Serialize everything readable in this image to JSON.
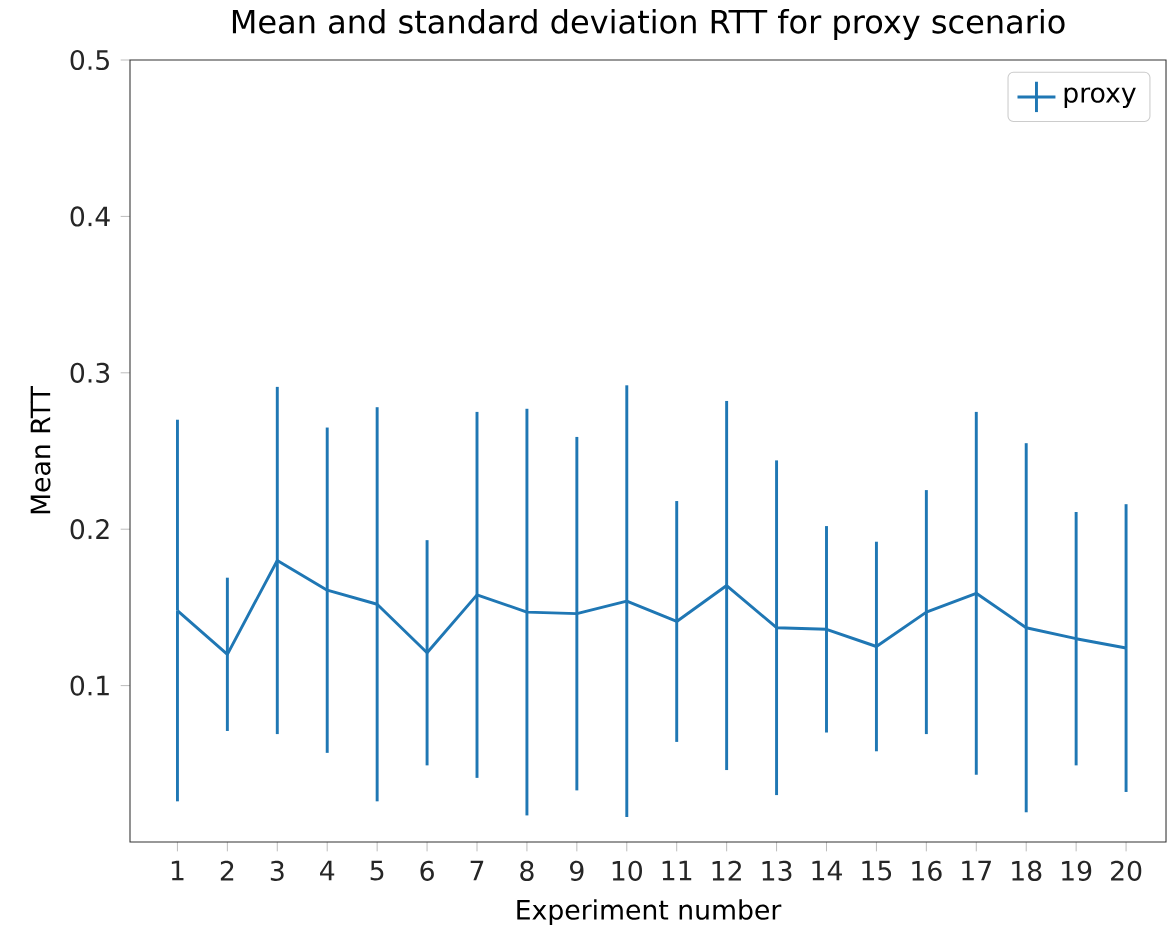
{
  "chart_data": {
    "type": "line",
    "title": "Mean and standard deviation RTT for proxy scenario",
    "xlabel": "Experiment number",
    "ylabel": "Mean RTT",
    "x": [
      1,
      2,
      3,
      4,
      5,
      6,
      7,
      8,
      9,
      10,
      11,
      12,
      13,
      14,
      15,
      16,
      17,
      18,
      19,
      20
    ],
    "series": [
      {
        "name": "proxy",
        "color": "#1f77b4",
        "values": [
          0.148,
          0.12,
          0.18,
          0.161,
          0.152,
          0.121,
          0.158,
          0.147,
          0.146,
          0.154,
          0.141,
          0.164,
          0.137,
          0.136,
          0.125,
          0.147,
          0.159,
          0.137,
          0.13,
          0.124
        ],
        "errors": [
          0.122,
          0.049,
          0.111,
          0.104,
          0.126,
          0.072,
          0.117,
          0.13,
          0.113,
          0.138,
          0.077,
          0.118,
          0.107,
          0.066,
          0.067,
          0.078,
          0.116,
          0.118,
          0.081,
          0.092
        ]
      }
    ],
    "xlim": [
      0.05,
      20.8
    ],
    "ylim": [
      0,
      0.5
    ],
    "xticks": [
      1,
      2,
      3,
      4,
      5,
      6,
      7,
      8,
      9,
      10,
      11,
      12,
      13,
      14,
      15,
      16,
      17,
      18,
      19,
      20
    ],
    "yticks": [
      0.1,
      0.2,
      0.3,
      0.4,
      0.5
    ],
    "grid": false,
    "legend": "top right",
    "marker": "none",
    "line_style": "solid"
  }
}
